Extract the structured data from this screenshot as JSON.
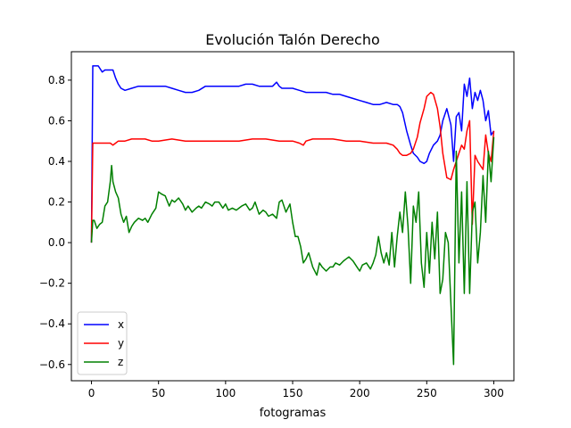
{
  "chart_data": {
    "type": "line",
    "title": "Evolución Talón Derecho",
    "xlabel": "fotogramas",
    "ylabel": "",
    "xlim": [
      -15,
      315
    ],
    "ylim": [
      -0.68,
      0.94
    ],
    "xticks": [
      0,
      50,
      100,
      150,
      200,
      250,
      300
    ],
    "xtick_labels": [
      "0",
      "50",
      "100",
      "150",
      "200",
      "250",
      "300"
    ],
    "yticks": [
      -0.6,
      -0.4,
      -0.2,
      0.0,
      0.2,
      0.4,
      0.6,
      0.8
    ],
    "ytick_labels": [
      "−0.6",
      "−0.4",
      "−0.2",
      "0.0",
      "0.2",
      "0.4",
      "0.6",
      "0.8"
    ],
    "grid": false,
    "legend": {
      "position": "lower-left",
      "entries": [
        "x",
        "y",
        "z"
      ]
    },
    "series": [
      {
        "name": "x",
        "color": "#0000ff",
        "x": [
          0,
          1,
          2,
          5,
          8,
          10,
          12,
          14,
          16,
          18,
          20,
          22,
          25,
          30,
          35,
          40,
          45,
          50,
          55,
          60,
          65,
          70,
          75,
          80,
          85,
          90,
          95,
          100,
          105,
          110,
          115,
          120,
          125,
          130,
          135,
          138,
          140,
          142,
          145,
          150,
          155,
          160,
          165,
          170,
          175,
          180,
          185,
          190,
          195,
          200,
          205,
          210,
          215,
          220,
          225,
          228,
          230,
          232,
          235,
          238,
          240,
          243,
          245,
          248,
          250,
          252,
          255,
          258,
          260,
          262,
          265,
          268,
          270,
          272,
          274,
          276,
          278,
          280,
          282,
          284,
          286,
          288,
          290,
          292,
          294,
          296,
          298,
          300
        ],
        "y": [
          0.0,
          0.87,
          0.87,
          0.87,
          0.84,
          0.85,
          0.85,
          0.85,
          0.85,
          0.81,
          0.78,
          0.76,
          0.75,
          0.76,
          0.77,
          0.77,
          0.77,
          0.77,
          0.77,
          0.76,
          0.75,
          0.74,
          0.74,
          0.75,
          0.77,
          0.77,
          0.77,
          0.77,
          0.77,
          0.77,
          0.78,
          0.78,
          0.77,
          0.77,
          0.77,
          0.79,
          0.77,
          0.76,
          0.76,
          0.76,
          0.75,
          0.74,
          0.74,
          0.74,
          0.74,
          0.73,
          0.73,
          0.72,
          0.71,
          0.7,
          0.69,
          0.68,
          0.68,
          0.69,
          0.68,
          0.68,
          0.67,
          0.64,
          0.55,
          0.48,
          0.44,
          0.42,
          0.4,
          0.39,
          0.4,
          0.44,
          0.48,
          0.5,
          0.53,
          0.6,
          0.66,
          0.58,
          0.4,
          0.62,
          0.64,
          0.55,
          0.78,
          0.72,
          0.81,
          0.66,
          0.74,
          0.7,
          0.75,
          0.7,
          0.6,
          0.65,
          0.53,
          0.55
        ]
      },
      {
        "name": "y",
        "color": "#ff0000",
        "x": [
          0,
          1,
          2,
          5,
          8,
          10,
          12,
          14,
          16,
          18,
          20,
          25,
          30,
          35,
          40,
          45,
          50,
          60,
          70,
          80,
          90,
          100,
          110,
          120,
          130,
          140,
          150,
          155,
          158,
          160,
          165,
          170,
          175,
          180,
          190,
          200,
          210,
          220,
          225,
          228,
          230,
          232,
          235,
          238,
          240,
          243,
          245,
          248,
          250,
          253,
          255,
          258,
          260,
          262,
          265,
          268,
          270,
          272,
          274,
          276,
          278,
          280,
          282,
          284,
          286,
          288,
          290,
          292,
          294,
          296,
          298,
          300
        ],
        "y": [
          0.0,
          0.49,
          0.49,
          0.49,
          0.49,
          0.49,
          0.49,
          0.49,
          0.48,
          0.49,
          0.5,
          0.5,
          0.51,
          0.51,
          0.51,
          0.5,
          0.5,
          0.51,
          0.5,
          0.5,
          0.5,
          0.5,
          0.5,
          0.51,
          0.51,
          0.5,
          0.5,
          0.49,
          0.48,
          0.5,
          0.51,
          0.51,
          0.51,
          0.51,
          0.5,
          0.5,
          0.49,
          0.49,
          0.48,
          0.46,
          0.44,
          0.43,
          0.43,
          0.44,
          0.46,
          0.52,
          0.59,
          0.66,
          0.72,
          0.74,
          0.73,
          0.66,
          0.57,
          0.44,
          0.32,
          0.31,
          0.36,
          0.4,
          0.44,
          0.48,
          0.46,
          0.55,
          0.6,
          0.09,
          0.43,
          0.4,
          0.38,
          0.36,
          0.53,
          0.44,
          0.4,
          0.55
        ]
      },
      {
        "name": "z",
        "color": "#008000",
        "x": [
          0,
          1,
          2,
          4,
          6,
          8,
          10,
          12,
          13,
          14,
          15,
          16,
          18,
          20,
          22,
          24,
          26,
          28,
          30,
          32,
          35,
          38,
          40,
          42,
          45,
          48,
          50,
          52,
          55,
          58,
          60,
          62,
          65,
          68,
          70,
          72,
          75,
          78,
          80,
          82,
          85,
          88,
          90,
          92,
          95,
          98,
          100,
          102,
          105,
          108,
          110,
          112,
          115,
          118,
          120,
          122,
          125,
          128,
          130,
          132,
          135,
          138,
          140,
          142,
          145,
          148,
          150,
          152,
          154,
          156,
          158,
          160,
          162,
          165,
          168,
          170,
          172,
          175,
          178,
          180,
          182,
          185,
          188,
          190,
          192,
          195,
          198,
          200,
          202,
          205,
          208,
          210,
          212,
          214,
          216,
          218,
          220,
          222,
          224,
          226,
          228,
          230,
          232,
          234,
          236,
          238,
          240,
          242,
          244,
          246,
          248,
          250,
          252,
          254,
          256,
          258,
          260,
          262,
          264,
          266,
          268,
          270,
          272,
          274,
          276,
          278,
          280,
          282,
          284,
          286,
          288,
          290,
          292,
          294,
          296,
          298,
          300
        ],
        "y": [
          0.0,
          0.11,
          0.11,
          0.07,
          0.09,
          0.1,
          0.18,
          0.2,
          0.25,
          0.3,
          0.38,
          0.3,
          0.25,
          0.22,
          0.14,
          0.1,
          0.13,
          0.05,
          0.08,
          0.1,
          0.12,
          0.11,
          0.12,
          0.1,
          0.14,
          0.17,
          0.25,
          0.24,
          0.23,
          0.18,
          0.21,
          0.2,
          0.22,
          0.19,
          0.16,
          0.18,
          0.15,
          0.17,
          0.18,
          0.17,
          0.2,
          0.19,
          0.18,
          0.2,
          0.2,
          0.17,
          0.19,
          0.16,
          0.17,
          0.16,
          0.17,
          0.18,
          0.19,
          0.16,
          0.17,
          0.2,
          0.14,
          0.16,
          0.15,
          0.13,
          0.14,
          0.12,
          0.2,
          0.21,
          0.15,
          0.19,
          0.1,
          0.03,
          0.03,
          -0.02,
          -0.1,
          -0.08,
          -0.05,
          -0.12,
          -0.16,
          -0.1,
          -0.12,
          -0.14,
          -0.12,
          -0.12,
          -0.1,
          -0.11,
          -0.09,
          -0.08,
          -0.07,
          -0.09,
          -0.12,
          -0.14,
          -0.11,
          -0.1,
          -0.13,
          -0.1,
          -0.06,
          0.03,
          -0.05,
          -0.1,
          -0.05,
          -0.11,
          0.05,
          -0.12,
          0.03,
          0.15,
          0.05,
          0.25,
          0.08,
          -0.2,
          0.18,
          0.1,
          0.25,
          -0.1,
          -0.22,
          0.05,
          -0.15,
          0.1,
          -0.08,
          0.15,
          -0.25,
          -0.18,
          0.05,
          0.0,
          -0.3,
          -0.6,
          0.45,
          -0.1,
          0.25,
          -0.25,
          0.3,
          -0.25,
          0.15,
          0.2,
          -0.1,
          0.05,
          0.33,
          0.1,
          0.45,
          0.3,
          0.52
        ]
      }
    ]
  }
}
